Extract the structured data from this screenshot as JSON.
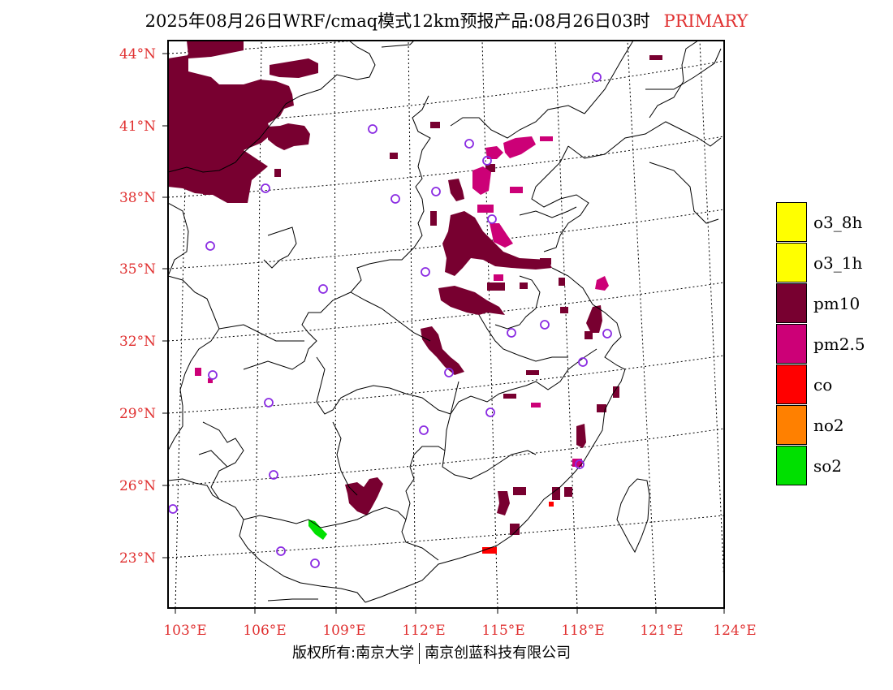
{
  "title": {
    "text": "2025年08月26日WRF/cmaq模式12km预报产品:08月26日03时",
    "tag": "PRIMARY",
    "tag_color": "#e03030"
  },
  "axes": {
    "lat_labels": [
      "44°N",
      "41°N",
      "38°N",
      "35°N",
      "32°N",
      "29°N",
      "26°N",
      "23°N"
    ],
    "lon_labels": [
      "103°E",
      "106°E",
      "109°E",
      "112°E",
      "115°E",
      "118°E",
      "121°E",
      "124°E"
    ],
    "label_color": "#e03030"
  },
  "legend": [
    {
      "label": "o3_8h",
      "color": "#ffff00"
    },
    {
      "label": "o3_1h",
      "color": "#ffff00"
    },
    {
      "label": "pm10",
      "color": "#780030"
    },
    {
      "label": "pm2.5",
      "color": "#cc0077"
    },
    {
      "label": "co",
      "color": "#ff0000"
    },
    {
      "label": "no2",
      "color": "#ff8000"
    },
    {
      "label": "so2",
      "color": "#00e000"
    }
  ],
  "footer": {
    "left": "版权所有:南京大学",
    "right": "南京创蓝科技有限公司"
  },
  "colors": {
    "pm10": "#780030",
    "pm25": "#cc0077",
    "co": "#ff0000",
    "so2": "#00e000",
    "station": "#8a2be2"
  }
}
